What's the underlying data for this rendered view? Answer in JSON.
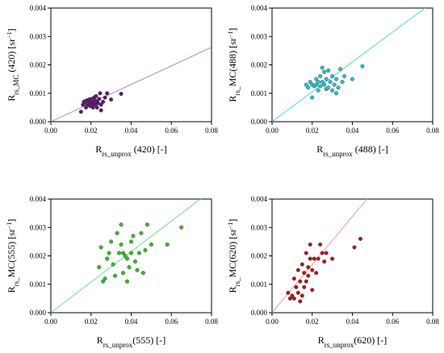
{
  "chart_data": [
    {
      "type": "scatter",
      "xlabel": {
        "base": "R",
        "sub": "rs_unprox",
        "rest": " (420) [-]"
      },
      "ylabel": {
        "base": "R",
        "sub": "rs_MC",
        "rest": " (420) [sr",
        "sup": "−1",
        "close": "]"
      },
      "xlim": [
        0,
        0.08
      ],
      "ylim": [
        0,
        0.004
      ],
      "xticks": [
        "0.00",
        "0.02",
        "0.04",
        "0.06",
        "0.08"
      ],
      "yticks": [
        "0.000",
        "0.001",
        "0.002",
        "0.003",
        "0.004"
      ],
      "color": "#5b1a6e",
      "line_color": "#a98db8",
      "fit_line": [
        [
          0,
          0
        ],
        [
          0.08,
          0.00262
        ]
      ],
      "points": [
        [
          0.015,
          0.00035
        ],
        [
          0.016,
          0.0006
        ],
        [
          0.0165,
          0.0007
        ],
        [
          0.017,
          0.00065
        ],
        [
          0.0175,
          0.0005
        ],
        [
          0.018,
          0.00075
        ],
        [
          0.0185,
          0.0006
        ],
        [
          0.019,
          0.0007
        ],
        [
          0.0195,
          0.00055
        ],
        [
          0.02,
          0.00068
        ],
        [
          0.02,
          0.0008
        ],
        [
          0.0205,
          0.0006
        ],
        [
          0.021,
          0.0007
        ],
        [
          0.021,
          0.0005
        ],
        [
          0.0215,
          0.00085
        ],
        [
          0.022,
          0.0006
        ],
        [
          0.022,
          0.00075
        ],
        [
          0.0225,
          0.0009
        ],
        [
          0.023,
          0.0007
        ],
        [
          0.023,
          0.0005
        ],
        [
          0.0235,
          0.00065
        ],
        [
          0.024,
          0.0008
        ],
        [
          0.0245,
          0.001
        ],
        [
          0.025,
          0.0006
        ],
        [
          0.025,
          0.0004
        ],
        [
          0.026,
          0.0007
        ],
        [
          0.027,
          0.00085
        ],
        [
          0.028,
          0.001
        ],
        [
          0.03,
          0.00078
        ],
        [
          0.035,
          0.00098
        ],
        [
          0.017,
          0.00072
        ],
        [
          0.019,
          0.00078
        ]
      ]
    },
    {
      "type": "scatter",
      "xlabel": {
        "base": "R",
        "sub": "rs_unprox",
        "rest": " (488) [-]"
      },
      "ylabel": {
        "base": "R",
        "sub": "rs_",
        "rest": "MC(488) [sr",
        "sup": "−1",
        "close": "]"
      },
      "xlim": [
        0,
        0.08
      ],
      "ylim": [
        0,
        0.004
      ],
      "xticks": [
        "0.00",
        "0.02",
        "0.04",
        "0.06",
        "0.08"
      ],
      "yticks": [
        "0.000",
        "0.001",
        "0.002",
        "0.003",
        "0.004"
      ],
      "color": "#2bbfc8",
      "line_color": "#4fd6de",
      "fit_line": [
        [
          0,
          0
        ],
        [
          0.08,
          0.0042
        ]
      ],
      "points": [
        [
          0.017,
          0.0013
        ],
        [
          0.018,
          0.0012
        ],
        [
          0.019,
          0.0014
        ],
        [
          0.02,
          0.0013
        ],
        [
          0.02,
          0.00085
        ],
        [
          0.021,
          0.00125
        ],
        [
          0.022,
          0.0015
        ],
        [
          0.022,
          0.0013
        ],
        [
          0.023,
          0.0014
        ],
        [
          0.023,
          0.0011
        ],
        [
          0.024,
          0.0016
        ],
        [
          0.024,
          0.00125
        ],
        [
          0.025,
          0.0019
        ],
        [
          0.025,
          0.0014
        ],
        [
          0.026,
          0.0013
        ],
        [
          0.027,
          0.0015
        ],
        [
          0.027,
          0.00115
        ],
        [
          0.028,
          0.0018
        ],
        [
          0.028,
          0.0012
        ],
        [
          0.029,
          0.0014
        ],
        [
          0.03,
          0.0016
        ],
        [
          0.03,
          0.0011
        ],
        [
          0.031,
          0.0013
        ],
        [
          0.032,
          0.0015
        ],
        [
          0.032,
          0.001
        ],
        [
          0.033,
          0.0012
        ],
        [
          0.034,
          0.00185
        ],
        [
          0.035,
          0.0014
        ],
        [
          0.036,
          0.0016
        ],
        [
          0.04,
          0.0015
        ],
        [
          0.045,
          0.00195
        ],
        [
          0.026,
          0.00175
        ]
      ]
    },
    {
      "type": "scatter",
      "xlabel": {
        "base": "R",
        "sub": "rs_unprox",
        "rest": "(555) [-]"
      },
      "ylabel": {
        "base": "R",
        "sub": "rs_",
        "rest": "MC(555) [sr",
        "sup": "−1",
        "close": "]"
      },
      "xlim": [
        0,
        0.08
      ],
      "ylim": [
        0,
        0.004
      ],
      "xticks": [
        "0.00",
        "0.02",
        "0.04",
        "0.06",
        "0.08"
      ],
      "yticks": [
        "0.000",
        "0.001",
        "0.002",
        "0.003",
        "0.004"
      ],
      "color": "#2fbf1f",
      "line_color": "#6ee08a",
      "fit_line": [
        [
          0,
          0
        ],
        [
          0.08,
          0.0043
        ]
      ],
      "points": [
        [
          0.024,
          0.0016
        ],
        [
          0.025,
          0.0023
        ],
        [
          0.026,
          0.0011
        ],
        [
          0.027,
          0.0012
        ],
        [
          0.028,
          0.0019
        ],
        [
          0.029,
          0.0021
        ],
        [
          0.03,
          0.0025
        ],
        [
          0.031,
          0.0017
        ],
        [
          0.032,
          0.0013
        ],
        [
          0.033,
          0.0028
        ],
        [
          0.034,
          0.0021
        ],
        [
          0.035,
          0.0031
        ],
        [
          0.035,
          0.0024
        ],
        [
          0.036,
          0.0014
        ],
        [
          0.036,
          0.0021
        ],
        [
          0.037,
          0.002
        ],
        [
          0.038,
          0.0019
        ],
        [
          0.038,
          0.0011
        ],
        [
          0.039,
          0.0016
        ],
        [
          0.04,
          0.0025
        ],
        [
          0.04,
          0.0021
        ],
        [
          0.041,
          0.0027
        ],
        [
          0.042,
          0.0018
        ],
        [
          0.043,
          0.0015
        ],
        [
          0.044,
          0.0021
        ],
        [
          0.045,
          0.0028
        ],
        [
          0.046,
          0.0014
        ],
        [
          0.047,
          0.0022
        ],
        [
          0.048,
          0.0031
        ],
        [
          0.05,
          0.0024
        ],
        [
          0.058,
          0.0024
        ],
        [
          0.065,
          0.003
        ]
      ]
    },
    {
      "type": "scatter",
      "xlabel": {
        "base": "R",
        "sub": "rs_unprox",
        "rest": "(620) [-]"
      },
      "ylabel": {
        "base": "R",
        "sub": "rs_",
        "rest": "MC(620) [sr",
        "sup": "−1",
        "close": "]"
      },
      "xlim": [
        0,
        0.08
      ],
      "ylim": [
        0,
        0.004
      ],
      "xticks": [
        "0.00",
        "0.02",
        "0.04",
        "0.06",
        "0.08"
      ],
      "yticks": [
        "0.000",
        "0.001",
        "0.002",
        "0.003",
        "0.004"
      ],
      "color": "#b01818",
      "line_color": "#e3a0a0",
      "fit_line": [
        [
          0,
          0
        ],
        [
          0.052,
          0.0044
        ]
      ],
      "points": [
        [
          0.008,
          0.0007
        ],
        [
          0.009,
          0.0005
        ],
        [
          0.01,
          0.0006
        ],
        [
          0.011,
          0.0012
        ],
        [
          0.011,
          0.0005
        ],
        [
          0.012,
          0.0009
        ],
        [
          0.013,
          0.0015
        ],
        [
          0.013,
          0.0007
        ],
        [
          0.014,
          0.0011
        ],
        [
          0.015,
          0.0006
        ],
        [
          0.015,
          0.0017
        ],
        [
          0.016,
          0.0014
        ],
        [
          0.016,
          0.0009
        ],
        [
          0.017,
          0.0021
        ],
        [
          0.017,
          0.0011
        ],
        [
          0.018,
          0.0016
        ],
        [
          0.018,
          0.0013
        ],
        [
          0.019,
          0.0024
        ],
        [
          0.019,
          0.0019
        ],
        [
          0.02,
          0.0015
        ],
        [
          0.02,
          0.0008
        ],
        [
          0.021,
          0.0019
        ],
        [
          0.022,
          0.0014
        ],
        [
          0.023,
          0.0019
        ],
        [
          0.024,
          0.0024
        ],
        [
          0.025,
          0.0021
        ],
        [
          0.026,
          0.0018
        ],
        [
          0.027,
          0.0021
        ],
        [
          0.03,
          0.0019
        ],
        [
          0.041,
          0.0023
        ],
        [
          0.044,
          0.0026
        ],
        [
          0.014,
          0.0004
        ]
      ]
    }
  ]
}
